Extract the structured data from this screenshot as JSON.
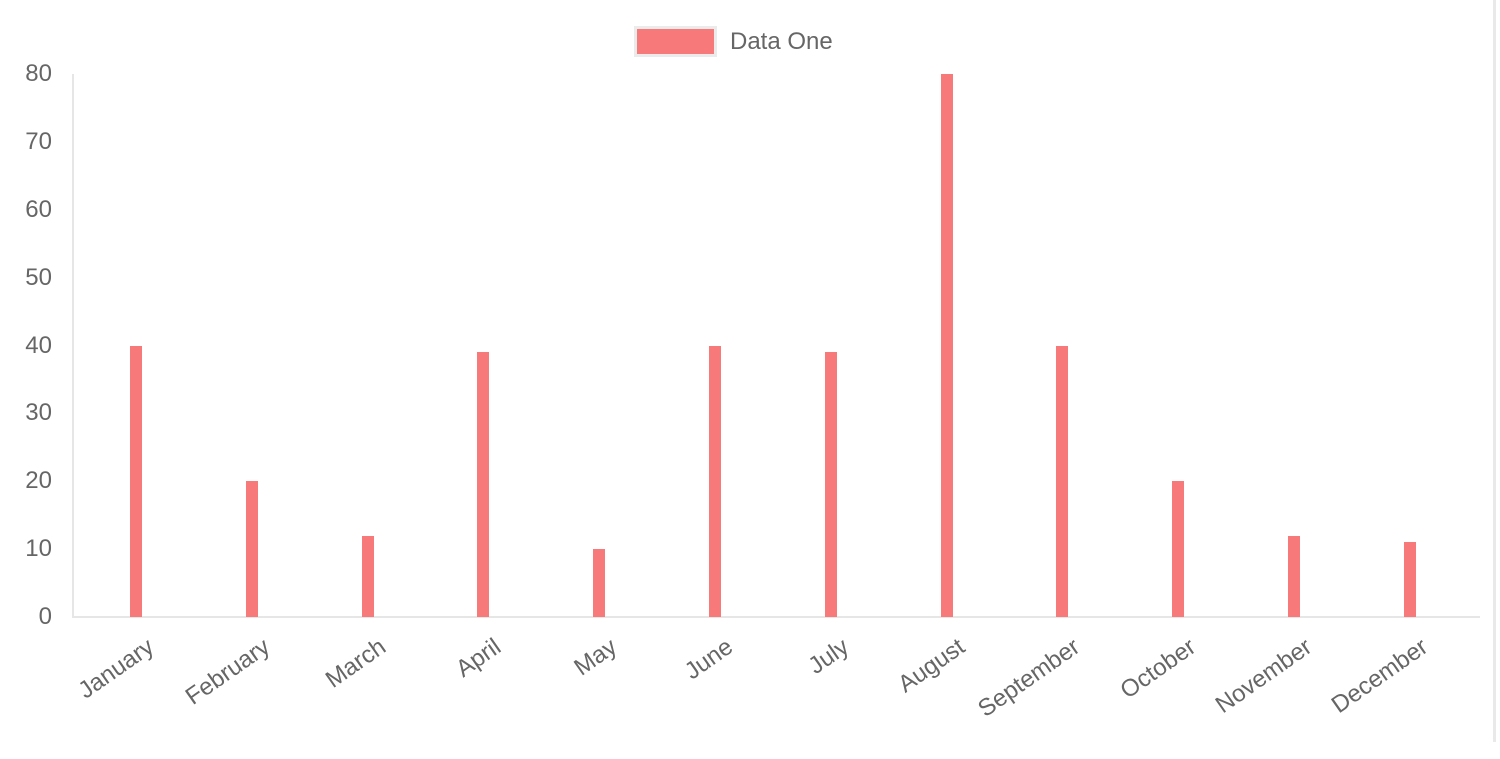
{
  "legend": {
    "label": "Data One"
  },
  "chart_data": {
    "type": "bar",
    "title": "",
    "xlabel": "",
    "ylabel": "",
    "categories": [
      "January",
      "February",
      "March",
      "April",
      "May",
      "June",
      "July",
      "August",
      "September",
      "October",
      "November",
      "December"
    ],
    "series": [
      {
        "name": "Data One",
        "color": "#f87979",
        "values": [
          40,
          20,
          12,
          39,
          10,
          40,
          39,
          80,
          40,
          20,
          12,
          11
        ]
      }
    ],
    "ylim": [
      0,
      80
    ],
    "y_ticks": [
      0,
      10,
      20,
      30,
      40,
      50,
      60,
      70,
      80
    ],
    "grid": "off",
    "legend_position": "top",
    "axis_color": "#e6e6e6",
    "tick_label_color": "#666666",
    "background_color": "#ffffff"
  }
}
